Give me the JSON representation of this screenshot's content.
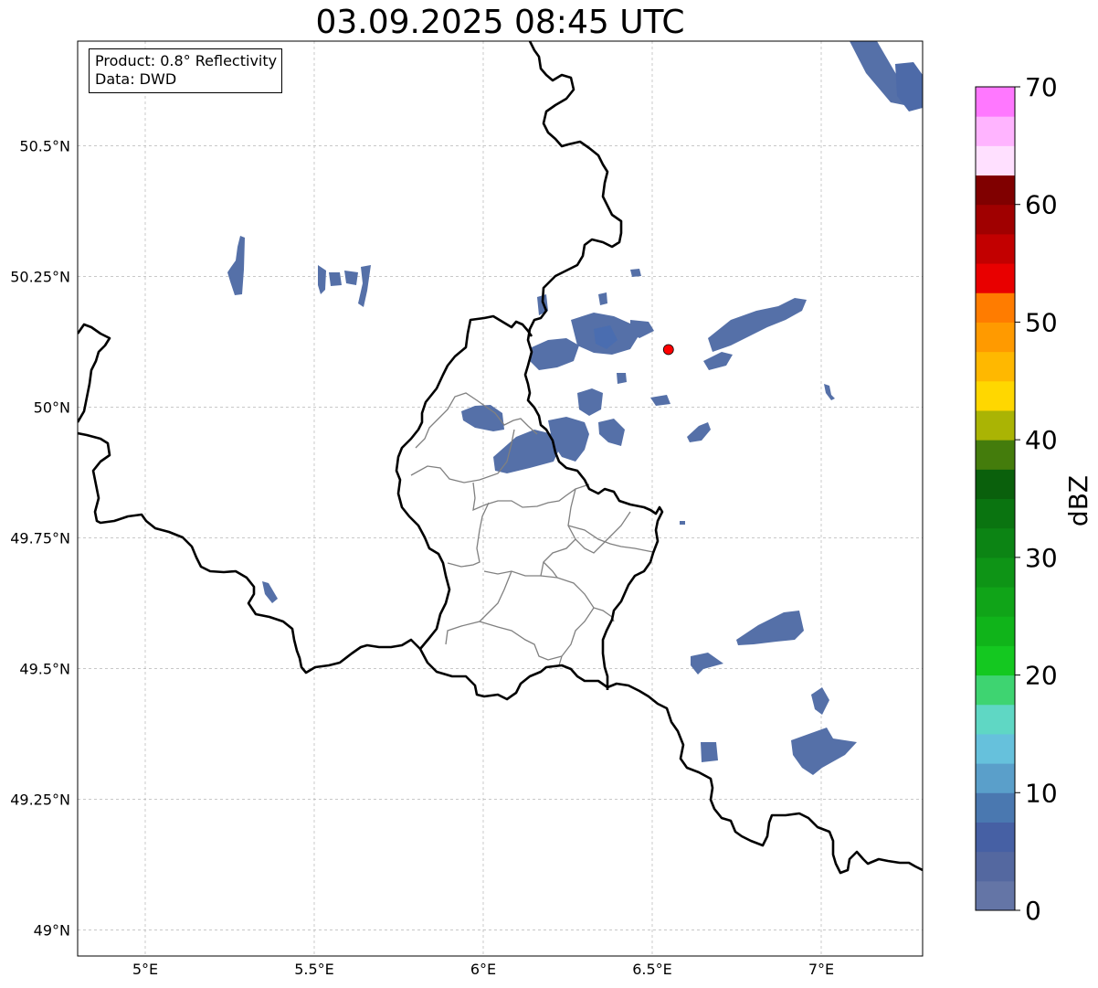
{
  "title": "03.09.2025 08:45 UTC",
  "info": {
    "product": "Product: 0.8° Reflectivity",
    "source": "Data: DWD"
  },
  "map": {
    "lon_range": [
      4.8,
      7.3
    ],
    "lat_range": [
      48.95,
      50.7
    ],
    "gridlines": true,
    "lon_ticks": [
      {
        "value": 5.0,
        "label": "5°E"
      },
      {
        "value": 5.5,
        "label": "5.5°E"
      },
      {
        "value": 6.0,
        "label": "6°E"
      },
      {
        "value": 6.5,
        "label": "6.5°E"
      },
      {
        "value": 7.0,
        "label": "7°E"
      }
    ],
    "lat_ticks": [
      {
        "value": 49.0,
        "label": "49°N"
      },
      {
        "value": 49.25,
        "label": "49.25°N"
      },
      {
        "value": 49.5,
        "label": "49.5°N"
      },
      {
        "value": 49.75,
        "label": "49.75°N"
      },
      {
        "value": 50.0,
        "label": "50°N"
      },
      {
        "value": 50.25,
        "label": "50.25°N"
      },
      {
        "value": 50.5,
        "label": "50.5°N"
      }
    ],
    "radar_site": {
      "lon": 6.548,
      "lat": 50.11,
      "color": "#ff0000"
    },
    "echo_color": "#5570a8",
    "echo_strong_color": "#4a6db0"
  },
  "colorbar": {
    "label": "dBZ",
    "min": 0,
    "max": 70,
    "step": 2.5,
    "colors": [
      "#6475a6",
      "#5468a0",
      "#4660a4",
      "#4a78b0",
      "#5a9fca",
      "#66c1dc",
      "#5fd7c4",
      "#3ed471",
      "#14c820",
      "#10b41a",
      "#10a418",
      "#0e9416",
      "#0c8414",
      "#0a7410",
      "#0a600c",
      "#447c0c",
      "#aab404",
      "#ffd700",
      "#ffb800",
      "#ff9a00",
      "#ff7c00",
      "#e80000",
      "#c20000",
      "#a00000",
      "#800000",
      "#ffe0ff",
      "#ffb4ff",
      "#ff78ff",
      "#ee36ee"
    ],
    "ticks": [
      {
        "value": 0,
        "label": "0"
      },
      {
        "value": 10,
        "label": "10"
      },
      {
        "value": 20,
        "label": "20"
      },
      {
        "value": 30,
        "label": "30"
      },
      {
        "value": 40,
        "label": "40"
      },
      {
        "value": 50,
        "label": "50"
      },
      {
        "value": 60,
        "label": "60"
      },
      {
        "value": 70,
        "label": "70"
      }
    ]
  }
}
